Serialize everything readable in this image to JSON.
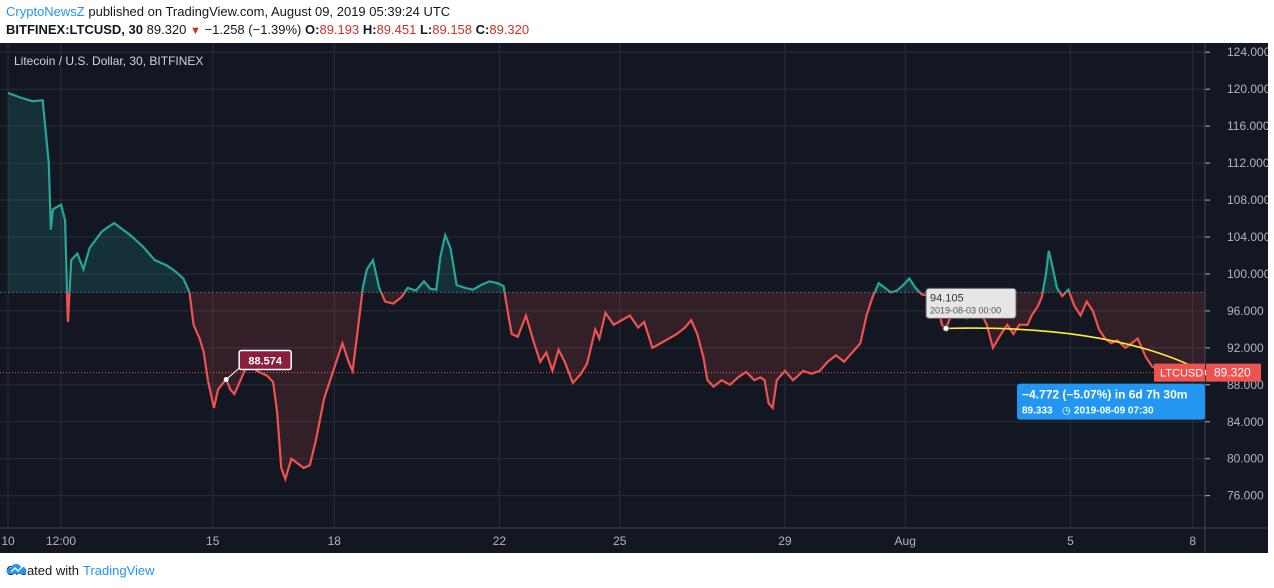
{
  "header": {
    "author": "CryptoNewsZ",
    "published_text": " published on TradingView.com, August 09, 2019 05:39:24 UTC"
  },
  "ohlc": {
    "symbol": "BITFINEX:LTCUSD, 30",
    "last": "89.320",
    "change": "−1.258 (−1.39%)",
    "o_label": "O:",
    "o": "89.193",
    "h_label": "H:",
    "h": "89.451",
    "l_label": "L:",
    "l": "89.158",
    "c_label": "C:",
    "c": "89.320"
  },
  "chart_data": {
    "type": "line",
    "title": "Litecoin / U.S. Dollar, 30, BITFINEX",
    "symbol_tag": "LTCUSD",
    "price_tag": "89.320",
    "ylim": [
      72.5,
      125
    ],
    "y_ticks": [
      "124.000",
      "120.000",
      "116.000",
      "112.000",
      "108.000",
      "104.000",
      "100.000",
      "96.000",
      "92.000",
      "88.000",
      "84.000",
      "80.000",
      "76.000"
    ],
    "y_tick_values": [
      124,
      120,
      116,
      112,
      108,
      104,
      100,
      96,
      92,
      88,
      84,
      80,
      76
    ],
    "x_ticks": [
      {
        "label": "10",
        "pos": 0.0
      },
      {
        "label": "12:00",
        "pos": 0.5
      },
      {
        "label": "15",
        "pos": 1.0
      },
      {
        "label": "18",
        "pos": 1.5
      },
      {
        "label": "22",
        "pos": 2.0
      },
      {
        "label": "25",
        "pos": 2.5
      },
      {
        "label": "29",
        "pos": 3.0
      },
      {
        "label": "Aug",
        "pos": 3.5
      },
      {
        "label": "5",
        "pos": 4.0
      },
      {
        "label": "8",
        "pos": 4.5
      }
    ],
    "x_tick_t": [
      0,
      1.3,
      5.02,
      8.0,
      12.05,
      15.0,
      19.05,
      22.0,
      26.05,
      29.05
    ],
    "reference_price": 98.0,
    "series": [
      {
        "values": [
          [
            0,
            119.6
          ],
          [
            0.3,
            119.1
          ],
          [
            0.6,
            118.7
          ],
          [
            0.85,
            118.8
          ],
          [
            1.0,
            112
          ],
          [
            1.05,
            104.8
          ],
          [
            1.1,
            107
          ],
          [
            1.3,
            107.5
          ],
          [
            1.4,
            105.8
          ],
          [
            1.45,
            97.5
          ],
          [
            1.47,
            94.8
          ],
          [
            1.55,
            101.5
          ],
          [
            1.7,
            102.2
          ],
          [
            1.85,
            100.5
          ],
          [
            2.0,
            102.8
          ],
          [
            2.3,
            104.6
          ],
          [
            2.6,
            105.5
          ],
          [
            3.0,
            104.2
          ],
          [
            3.3,
            103
          ],
          [
            3.6,
            101.5
          ],
          [
            3.9,
            100.9
          ],
          [
            4.1,
            100.3
          ],
          [
            4.3,
            99.5
          ],
          [
            4.45,
            98
          ],
          [
            4.55,
            94.5
          ],
          [
            4.7,
            93
          ],
          [
            4.8,
            91.5
          ],
          [
            4.9,
            88.5
          ],
          [
            5.0,
            86.5
          ],
          [
            5.05,
            85.5
          ],
          [
            5.15,
            87.5
          ],
          [
            5.35,
            88.6
          ],
          [
            5.45,
            87.5
          ],
          [
            5.55,
            87
          ],
          [
            5.7,
            88.5
          ],
          [
            5.9,
            90.5
          ],
          [
            6.1,
            89.5
          ],
          [
            6.35,
            89
          ],
          [
            6.5,
            88.3
          ],
          [
            6.6,
            85
          ],
          [
            6.7,
            79
          ],
          [
            6.8,
            77.8
          ],
          [
            6.95,
            80
          ],
          [
            7.1,
            79.5
          ],
          [
            7.25,
            79
          ],
          [
            7.4,
            79.3
          ],
          [
            7.55,
            82
          ],
          [
            7.75,
            86.5
          ],
          [
            7.9,
            88.5
          ],
          [
            8.05,
            90.5
          ],
          [
            8.2,
            92.5
          ],
          [
            8.35,
            90.5
          ],
          [
            8.45,
            89.5
          ],
          [
            8.55,
            93
          ],
          [
            8.7,
            98.5
          ],
          [
            8.8,
            100.5
          ],
          [
            8.95,
            101.5
          ],
          [
            9.1,
            98.5
          ],
          [
            9.25,
            97
          ],
          [
            9.45,
            96.8
          ],
          [
            9.65,
            97.5
          ],
          [
            9.8,
            98.5
          ],
          [
            10.0,
            98.2
          ],
          [
            10.2,
            99.2
          ],
          [
            10.35,
            98.4
          ],
          [
            10.5,
            98.3
          ],
          [
            10.6,
            101.8
          ],
          [
            10.72,
            104.2
          ],
          [
            10.85,
            102.8
          ],
          [
            11.0,
            98.8
          ],
          [
            11.2,
            98.5
          ],
          [
            11.4,
            98.3
          ],
          [
            11.6,
            98.8
          ],
          [
            11.8,
            99.2
          ],
          [
            12.0,
            99
          ],
          [
            12.15,
            98.7
          ],
          [
            12.25,
            96
          ],
          [
            12.35,
            93.5
          ],
          [
            12.5,
            93.2
          ],
          [
            12.7,
            95.5
          ],
          [
            12.9,
            92.5
          ],
          [
            13.05,
            90.5
          ],
          [
            13.2,
            91.5
          ],
          [
            13.35,
            89.5
          ],
          [
            13.5,
            91.8
          ],
          [
            13.65,
            90.5
          ],
          [
            13.85,
            88.2
          ],
          [
            14.05,
            89.2
          ],
          [
            14.2,
            90.3
          ],
          [
            14.4,
            94
          ],
          [
            14.5,
            93
          ],
          [
            14.65,
            95.8
          ],
          [
            14.85,
            94.5
          ],
          [
            15.05,
            95
          ],
          [
            15.25,
            95.5
          ],
          [
            15.45,
            94.2
          ],
          [
            15.6,
            94.8
          ],
          [
            15.8,
            92
          ],
          [
            16.0,
            92.5
          ],
          [
            16.2,
            93
          ],
          [
            16.4,
            93.5
          ],
          [
            16.6,
            94.2
          ],
          [
            16.75,
            95
          ],
          [
            16.9,
            93.5
          ],
          [
            17.05,
            91
          ],
          [
            17.15,
            88.5
          ],
          [
            17.3,
            87.8
          ],
          [
            17.5,
            88.5
          ],
          [
            17.7,
            88
          ],
          [
            17.9,
            88.8
          ],
          [
            18.1,
            89.4
          ],
          [
            18.3,
            88.5
          ],
          [
            18.45,
            88.8
          ],
          [
            18.55,
            88.5
          ],
          [
            18.65,
            86
          ],
          [
            18.75,
            85.5
          ],
          [
            18.85,
            88.5
          ],
          [
            19.05,
            89.5
          ],
          [
            19.25,
            88.5
          ],
          [
            19.5,
            89.5
          ],
          [
            19.7,
            89.2
          ],
          [
            19.9,
            89.5
          ],
          [
            20.1,
            90.5
          ],
          [
            20.3,
            91.2
          ],
          [
            20.5,
            90.5
          ],
          [
            20.7,
            91.5
          ],
          [
            20.9,
            92.5
          ],
          [
            21.05,
            95.5
          ],
          [
            21.2,
            97.5
          ],
          [
            21.35,
            99
          ],
          [
            21.5,
            98.5
          ],
          [
            21.65,
            98
          ],
          [
            21.8,
            98.2
          ],
          [
            21.95,
            98.8
          ],
          [
            22.1,
            99.5
          ],
          [
            22.25,
            98.5
          ],
          [
            22.4,
            97.8
          ],
          [
            22.6,
            97.6
          ],
          [
            22.8,
            96.5
          ],
          [
            22.9,
            94.5
          ],
          [
            23.0,
            94.105
          ],
          [
            23.15,
            95.8
          ],
          [
            23.35,
            96
          ],
          [
            23.5,
            95.2
          ],
          [
            23.7,
            95.6
          ],
          [
            23.85,
            95.8
          ],
          [
            24.0,
            94.5
          ],
          [
            24.15,
            92
          ],
          [
            24.35,
            93.5
          ],
          [
            24.5,
            94.5
          ],
          [
            24.65,
            93.5
          ],
          [
            24.8,
            94.5
          ],
          [
            25.0,
            94.5
          ],
          [
            25.1,
            95.5
          ],
          [
            25.25,
            96.5
          ],
          [
            25.35,
            97.5
          ],
          [
            25.45,
            100
          ],
          [
            25.52,
            102.5
          ],
          [
            25.6,
            101
          ],
          [
            25.72,
            98.5
          ],
          [
            25.85,
            97.6
          ],
          [
            26.0,
            98.3
          ],
          [
            26.15,
            96.5
          ],
          [
            26.3,
            95.5
          ],
          [
            26.45,
            97
          ],
          [
            26.6,
            96
          ],
          [
            26.75,
            94
          ],
          [
            26.9,
            93
          ],
          [
            27.05,
            92.5
          ],
          [
            27.2,
            92.8
          ],
          [
            27.4,
            92
          ],
          [
            27.55,
            92.5
          ],
          [
            27.7,
            93
          ],
          [
            27.8,
            92
          ],
          [
            27.9,
            91
          ],
          [
            28.05,
            90
          ],
          [
            28.25,
            89.5
          ],
          [
            28.45,
            90
          ],
          [
            28.65,
            89.8
          ],
          [
            28.85,
            89.5
          ],
          [
            29.0,
            89.6
          ],
          [
            29.2,
            89.4
          ],
          [
            29.35,
            89.32
          ]
        ]
      }
    ],
    "annotations": {
      "low_label": "88.574",
      "high_label_price": "94.105",
      "high_label_date": "2019-08-03 00:00",
      "measure_change": "−4.772 (−5.07%) in 6d 7h 30m",
      "measure_end_price": "89.333",
      "measure_end_date": "2019-08-09  07:30"
    },
    "colors": {
      "up": "#26a69a",
      "down": "#ef5350",
      "background": "#131722",
      "grid": "#2a2e39",
      "arc": "#ffeb3b",
      "measure": "#2196f3"
    }
  },
  "footer": {
    "created_with": "Created with",
    "brand": "TradingView"
  }
}
